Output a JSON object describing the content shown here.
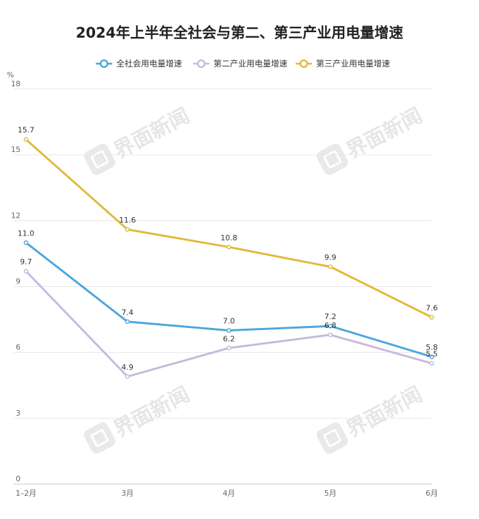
{
  "chart_data": {
    "type": "line",
    "title": "2024年上半年全社会与第二、第三产业用电量增速",
    "ylabel": "%",
    "categories": [
      "1–2月",
      "3月",
      "4月",
      "5月",
      "6月"
    ],
    "ylim": [
      0,
      18
    ],
    "yticks": [
      0,
      3,
      6,
      9,
      12,
      15,
      18
    ],
    "grid": true,
    "legend_position": "top-center",
    "series": [
      {
        "name": "全社会用电量增速",
        "color": "#4da6dc",
        "values": [
          11.0,
          7.4,
          7.0,
          7.2,
          5.8
        ],
        "labels": [
          "11.0",
          "7.4",
          "7.0",
          "7.2",
          "5.8"
        ]
      },
      {
        "name": "第二产业用电量增速",
        "color": "#c8b9dc",
        "values": [
          9.7,
          4.9,
          6.2,
          6.8,
          5.5
        ],
        "labels": [
          "9.7",
          "4.9",
          "6.2",
          "6.8",
          "5.5"
        ]
      },
      {
        "name": "第三产业用电量增速",
        "color": "#e2b93b",
        "values": [
          15.7,
          11.6,
          10.8,
          9.9,
          7.6
        ],
        "labels": [
          "15.7",
          "11.6",
          "10.8",
          "9.9",
          "7.6"
        ]
      }
    ]
  },
  "watermark": {
    "text": "界面新闻"
  }
}
